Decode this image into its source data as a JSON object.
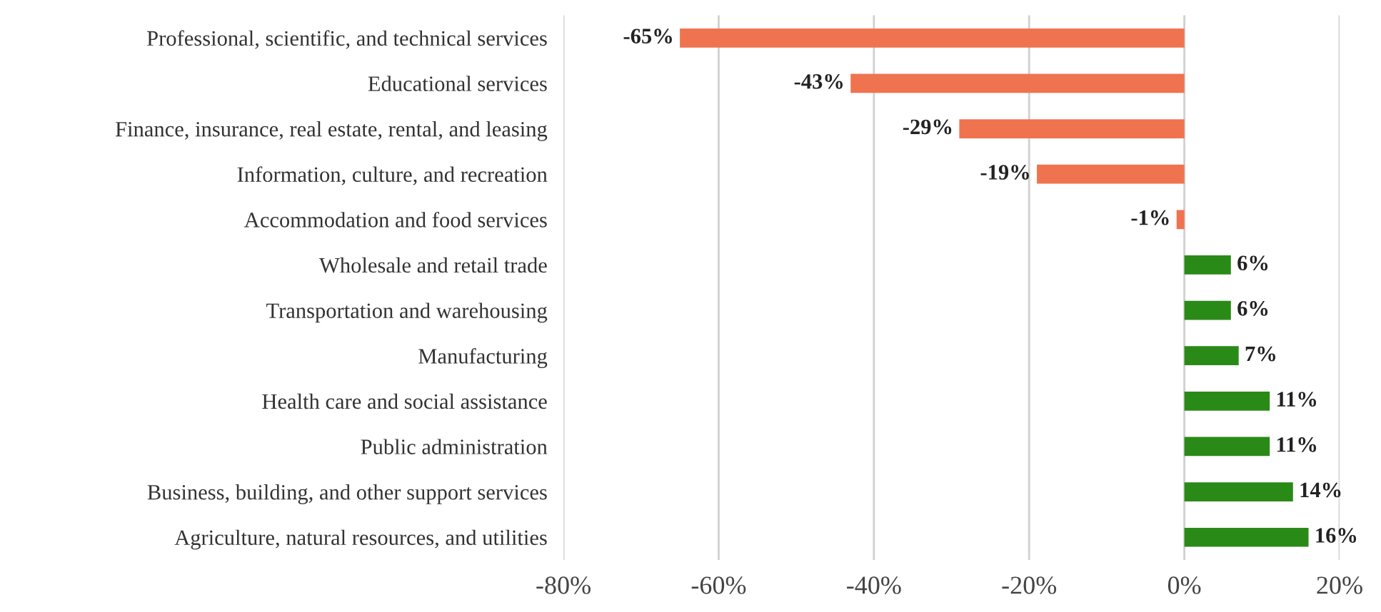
{
  "chart_data": {
    "type": "bar",
    "orientation": "horizontal",
    "categories": [
      "Professional, scientific, and technical services",
      "Educational services",
      "Finance, insurance, real estate, rental, and leasing",
      "Information, culture, and recreation",
      "Accommodation and food services",
      "Wholesale and retail trade",
      "Transportation and warehousing",
      "Manufacturing",
      "Health care and social assistance",
      "Public administration",
      "Business, building, and other support services",
      "Agriculture, natural resources, and utilities"
    ],
    "values": [
      -65,
      -43,
      -29,
      -19,
      -1,
      6,
      6,
      7,
      11,
      11,
      14,
      16
    ],
    "colors": [
      "#f07350",
      "#f07350",
      "#f07350",
      "#f07350",
      "#f07350",
      "#2a8a17",
      "#2a8a17",
      "#2a8a17",
      "#2a8a17",
      "#2a8a17",
      "#2a8a17",
      "#2a8a17"
    ],
    "value_labels": [
      "-65%",
      "-43%",
      "-29%",
      "-19%",
      "-1%",
      "6%",
      "6%",
      "7%",
      "11%",
      "11%",
      "14%",
      "16%"
    ],
    "xlim": [
      -80,
      20
    ],
    "xticks": [
      {
        "value": -80,
        "label": "-80%"
      },
      {
        "value": -60,
        "label": "-60%"
      },
      {
        "value": -40,
        "label": "-40%"
      },
      {
        "value": -20,
        "label": "-20%"
      },
      {
        "value": 0,
        "label": "0%"
      },
      {
        "value": 20,
        "label": "20%"
      }
    ],
    "grid": "x"
  }
}
